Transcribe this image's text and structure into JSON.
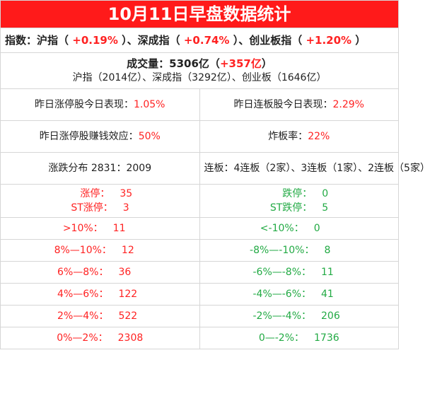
{
  "title": "10月11日早盘数据统计",
  "index_row": {
    "label": "指数：",
    "items": [
      {
        "name": "沪指",
        "value": "+0.19%"
      },
      {
        "name": "深成指",
        "value": "+0.74%"
      },
      {
        "name": "创业板指",
        "value": "+1.20%"
      }
    ]
  },
  "volume": {
    "label": "成交量：",
    "amount": "5306亿",
    "change": "+357亿",
    "breakdown": [
      {
        "name": "沪指",
        "value": "2014亿"
      },
      {
        "name": "深成指",
        "value": "3292亿"
      },
      {
        "name": "创业板",
        "value": "1646亿"
      }
    ]
  },
  "metrics": {
    "limit_up_perf_label": "昨日涨停股今日表现：",
    "limit_up_perf_value": "1.05%",
    "consecutive_perf_label": "昨日连板股今日表现：",
    "consecutive_perf_value": "2.29%",
    "profit_effect_label": "昨日涨停股赚钱效应：",
    "profit_effect_value": "50%",
    "broken_rate_label": "炸板率：",
    "broken_rate_value": "22%"
  },
  "distribution": {
    "label": "涨跌分布",
    "up": "2831",
    "down": "2009",
    "consecutive_text": "连板：4连板（2家）、3连板（1家）、2连板（5家）"
  },
  "limits": {
    "up_label": "涨停：",
    "up_value": "35",
    "st_up_label": "ST涨停：",
    "st_up_value": "3",
    "down_label": "跌停：",
    "down_value": "0",
    "st_down_label": "ST跌停：",
    "st_down_value": "5"
  },
  "ranges": [
    {
      "up_label": ">10%：",
      "up_value": "11",
      "down_label": "<-10%：",
      "down_value": "0"
    },
    {
      "up_label": "8%—10%：",
      "up_value": "12",
      "down_label": "-8%—-10%：",
      "down_value": "8"
    },
    {
      "up_label": "6%—8%：",
      "up_value": "36",
      "down_label": "-6%—-8%：",
      "down_value": "11"
    },
    {
      "up_label": "4%—6%：",
      "up_value": "122",
      "down_label": "-4%—-6%：",
      "down_value": "41"
    },
    {
      "up_label": "2%—4%：",
      "up_value": "522",
      "down_label": "-2%—-4%：",
      "down_value": "206"
    },
    {
      "up_label": "0%—2%：",
      "up_value": "2308",
      "down_label": "0—-2%：",
      "down_value": "1736"
    }
  ],
  "colors": {
    "title_bg": "#ff1a1a",
    "up": "#ff2222",
    "down": "#22aa44"
  }
}
